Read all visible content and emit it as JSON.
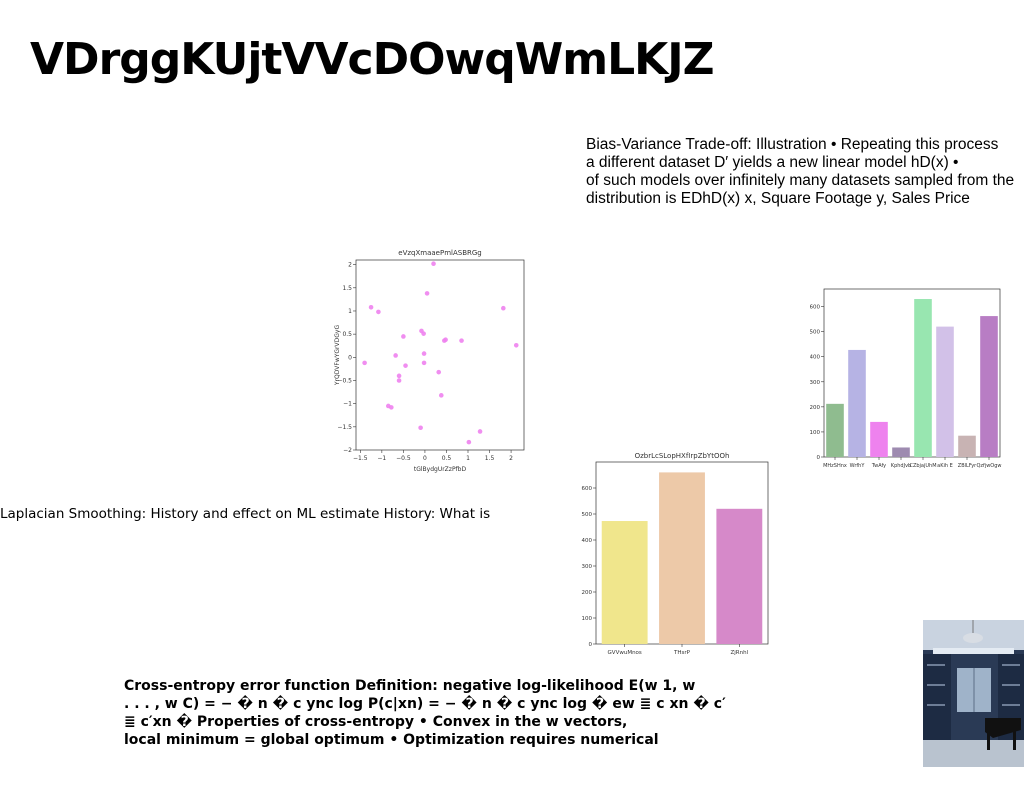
{
  "slide": {
    "title": "VDrggKUjtVVcDOwqWmLKJZ",
    "bias_text": "Bias-Variance Trade-off: Illustration • Repeating this process\na different dataset D′ yields a new linear model hD(x) •\nof such models over infinitely many datasets sampled from the\ndistribution is EDhD(x) x, Square Footage y, Sales Price",
    "laplacian_text": "Laplacian Smoothing: History and effect on ML estimate History: What is",
    "cross_entropy_text": "Cross-entropy error function Definition: negative log-likelihood E(w 1, w\n. . . , w C) = − � n � c ync log P(c|xn) = − � n � c ync log � ew ≣ c xn � c′\n≣ c′xn � Properties of cross-entropy • Convex in the w vectors,\nlocal minimum = global optimum • Optimization requires numerical"
  },
  "chart_data": [
    {
      "type": "scatter",
      "title": "eVzqXmaaePmlASBRGg",
      "xlabel": "tGlBydgUrZzPfbD",
      "ylabel": "YrQDVFwYGrVDGyG",
      "xlim": [
        -1.6,
        2.3
      ],
      "ylim": [
        -2.0,
        2.1
      ],
      "xticks": [
        -1.5,
        -1.0,
        -0.5,
        0.0,
        0.5,
        1.0,
        1.5,
        2.0
      ],
      "yticks": [
        -2.0,
        -1.5,
        -1.0,
        -0.5,
        0.0,
        0.5,
        1.0,
        1.5,
        2.0
      ],
      "color": "#ee82ee",
      "points": [
        [
          -1.25,
          1.08
        ],
        [
          -1.08,
          0.98
        ],
        [
          -0.85,
          -1.05
        ],
        [
          -0.78,
          -1.08
        ],
        [
          -1.4,
          -0.12
        ],
        [
          -0.68,
          0.04
        ],
        [
          -0.6,
          -0.4
        ],
        [
          -0.6,
          -0.5
        ],
        [
          -0.5,
          0.45
        ],
        [
          -0.45,
          -0.18
        ],
        [
          -0.1,
          -1.52
        ],
        [
          -0.08,
          0.57
        ],
        [
          -0.03,
          0.51
        ],
        [
          -0.02,
          0.08
        ],
        [
          -0.02,
          -0.12
        ],
        [
          0.05,
          1.38
        ],
        [
          0.2,
          2.02
        ],
        [
          0.32,
          -0.32
        ],
        [
          0.38,
          -0.82
        ],
        [
          0.45,
          0.36
        ],
        [
          0.48,
          0.38
        ],
        [
          0.85,
          0.36
        ],
        [
          1.02,
          -1.83
        ],
        [
          1.28,
          -1.6
        ],
        [
          1.82,
          1.06
        ],
        [
          2.12,
          0.26
        ]
      ]
    },
    {
      "type": "bar",
      "title": "OzbrLcSLopHXfIrpZbYtOOh",
      "categories": [
        "GVVwuMnos",
        "THsrP",
        "ZjRnhl"
      ],
      "values": [
        473,
        660,
        520
      ],
      "colors": [
        "#f0e68c",
        "#edc9a8",
        "#d689c9"
      ],
      "ylim": [
        0,
        700
      ],
      "yticks": [
        0,
        100,
        200,
        300,
        400,
        500,
        600
      ]
    },
    {
      "type": "bar",
      "title": "",
      "categories": [
        "MHzSHnx",
        "WrfhY",
        "TwAfy",
        "KphdJvb",
        "CZbjajUhM",
        "aKih E",
        "ZBlLFyr",
        "QzfjwOgw"
      ],
      "values": [
        212,
        427,
        140,
        38,
        630,
        520,
        85,
        562
      ],
      "colors": [
        "#8fbc8f",
        "#b6b3e4",
        "#ee82ee",
        "#9e8bb0",
        "#98e6b0",
        "#d2c1e8",
        "#c8b3b3",
        "#b87dc4"
      ],
      "ylim": [
        0,
        670
      ],
      "yticks": [
        0,
        100,
        200,
        300,
        400,
        500,
        600
      ]
    }
  ]
}
